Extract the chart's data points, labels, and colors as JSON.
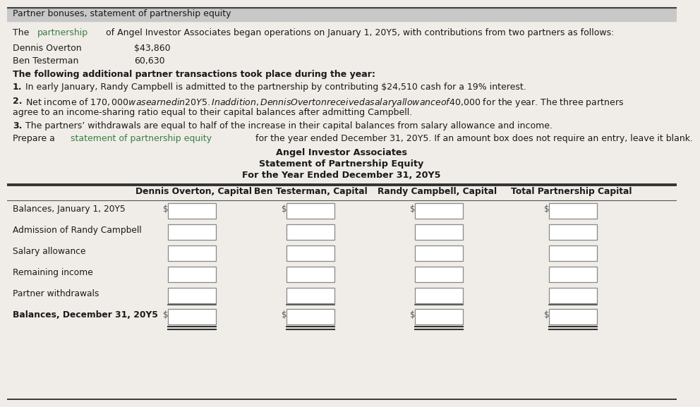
{
  "bg_color": "#f0ede8",
  "title_bar_text": "Partner bonuses, statement of partnership equity",
  "title_bar_bg": "#c8c8c8",
  "paragraph1_parts": [
    {
      "text": "The ",
      "style": "normal"
    },
    {
      "text": "partnership",
      "style": "green"
    },
    {
      "text": " of Angel Investor Associates began operations on January 1, 20Y5, with contributions from two partners as follows:",
      "style": "normal"
    }
  ],
  "partners": [
    {
      "name": "Dennis Overton",
      "amount": "$43,860"
    },
    {
      "name": "Ben Testerman",
      "amount": "60,630"
    }
  ],
  "bold_line": "The following additional partner transactions took place during the year:",
  "item1_num": "1.",
  "item1_text": "In early January, Randy Campbell is admitted to the partnership by contributing $24,510 cash for a 19% interest.",
  "item2_num": "2.",
  "item2_line1": "Net income of $170,000 was earned in 20Y5. In addition, Dennis Overton received a salary allowance of $40,000 for the year. The three partners",
  "item2_line2": "agree to an income-sharing ratio equal to their capital balances after admitting Campbell.",
  "item3_num": "3.",
  "item3_text": "The partners’ withdrawals are equal to half of the increase in their capital balances from salary allowance and income.",
  "prepare_parts": [
    {
      "text": "Prepare a ",
      "style": "normal"
    },
    {
      "text": "statement of partnership equity",
      "style": "green"
    },
    {
      "text": " for the year ended December 31, 20Y5. If an amount box does not require an entry, leave it blank.",
      "style": "normal"
    }
  ],
  "company_name": "Angel Investor Associates",
  "statement_title": "Statement of Partnership Equity",
  "period": "For the Year Ended December 31, 20Y5",
  "col_headers": [
    "Dennis Overton, Capital",
    "Ben Testerman, Capital",
    "Randy Campbell, Capital",
    "Total Partnership Capital"
  ],
  "row_labels": [
    "Balances, January 1, 20Y5",
    "Admission of Randy Campbell",
    "Salary allowance",
    "Remaining income",
    "Partner withdrawals",
    "Balances, December 31, 20Y5"
  ],
  "green_color": "#3a7d44",
  "font_size_body": 9.0,
  "font_size_header": 9.2,
  "font_size_table": 8.8
}
